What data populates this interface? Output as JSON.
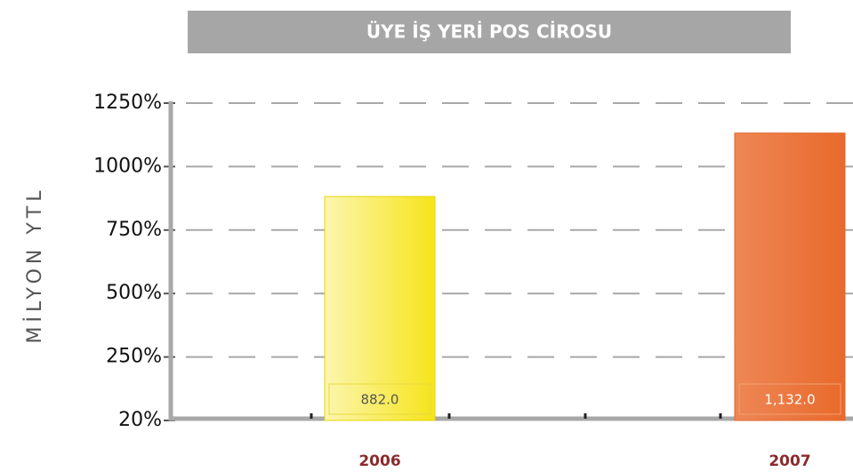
{
  "chart_data": {
    "type": "bar",
    "title": "ÜYE İŞ YERİ POS CİROSU",
    "y_label": "MİLYON YTL",
    "categories": [
      "2006",
      "2007"
    ],
    "values": [
      882,
      1132
    ],
    "value_labels": [
      "882.0",
      "1,132.0"
    ],
    "colors": [
      "#f6e41a",
      "#e9692b"
    ],
    "ylim": [
      20,
      1250
    ],
    "yticks": [
      {
        "value": 20,
        "label": "20%"
      },
      {
        "value": 250,
        "label": "250%"
      },
      {
        "value": 500,
        "label": "500%"
      },
      {
        "value": 750,
        "label": "750%"
      },
      {
        "value": 1000,
        "label": "1000%"
      },
      {
        "value": 1250,
        "label": "1250%"
      }
    ],
    "grid": true
  }
}
